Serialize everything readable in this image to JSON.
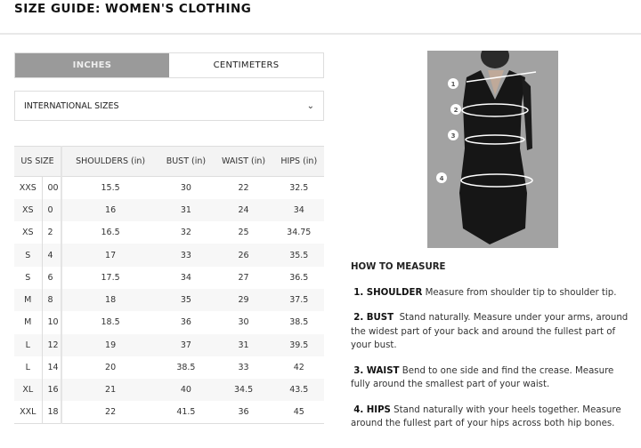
{
  "title": "SIZE GUIDE: WOMEN'S CLOTHING",
  "tabs": [
    {
      "label": "INCHES",
      "active": true
    },
    {
      "label": "CENTIMETERS",
      "active": false
    }
  ],
  "dropdown": {
    "value": "INTERNATIONAL SIZES",
    "icon": "chevron-down-icon"
  },
  "table": {
    "headers": [
      "US SIZE",
      "SHOULDERS (in)",
      "BUST (in)",
      "WAIST (in)",
      "HIPS (in)"
    ],
    "rows": [
      [
        "XXS",
        "00",
        "15.5",
        "30",
        "22",
        "32.5"
      ],
      [
        "XS",
        "0",
        "16",
        "31",
        "24",
        "34"
      ],
      [
        "XS",
        "2",
        "16.5",
        "32",
        "25",
        "34.75"
      ],
      [
        "S",
        "4",
        "17",
        "33",
        "26",
        "35.5"
      ],
      [
        "S",
        "6",
        "17.5",
        "34",
        "27",
        "36.5"
      ],
      [
        "M",
        "8",
        "18",
        "35",
        "29",
        "37.5"
      ],
      [
        "M",
        "10",
        "18.5",
        "36",
        "30",
        "38.5"
      ],
      [
        "L",
        "12",
        "19",
        "37",
        "31",
        "39.5"
      ],
      [
        "L",
        "14",
        "20",
        "38.5",
        "33",
        "42"
      ],
      [
        "XL",
        "16",
        "21",
        "40",
        "34.5",
        "43.5"
      ],
      [
        "XXL",
        "18",
        "22",
        "41.5",
        "36",
        "45"
      ]
    ]
  },
  "figure": {
    "markers": [
      "1",
      "2",
      "3",
      "4"
    ]
  },
  "how_to": {
    "heading": "HOW TO MEASURE",
    "items": [
      {
        "label": "1. SHOULDER",
        "text": "Measure from shoulder tip to shoulder tip."
      },
      {
        "label": "2. BUST",
        "text": "Stand naturally. Measure under your arms, around the widest part of your back and around the fullest part of your bust."
      },
      {
        "label": "3. WAIST",
        "text": "Bend to one side and find the crease. Measure fully around the smallest part of your waist."
      },
      {
        "label": "4. HIPS",
        "text": "Stand naturally with your heels together. Measure around the fullest part of your hips across both hip bones."
      }
    ]
  }
}
